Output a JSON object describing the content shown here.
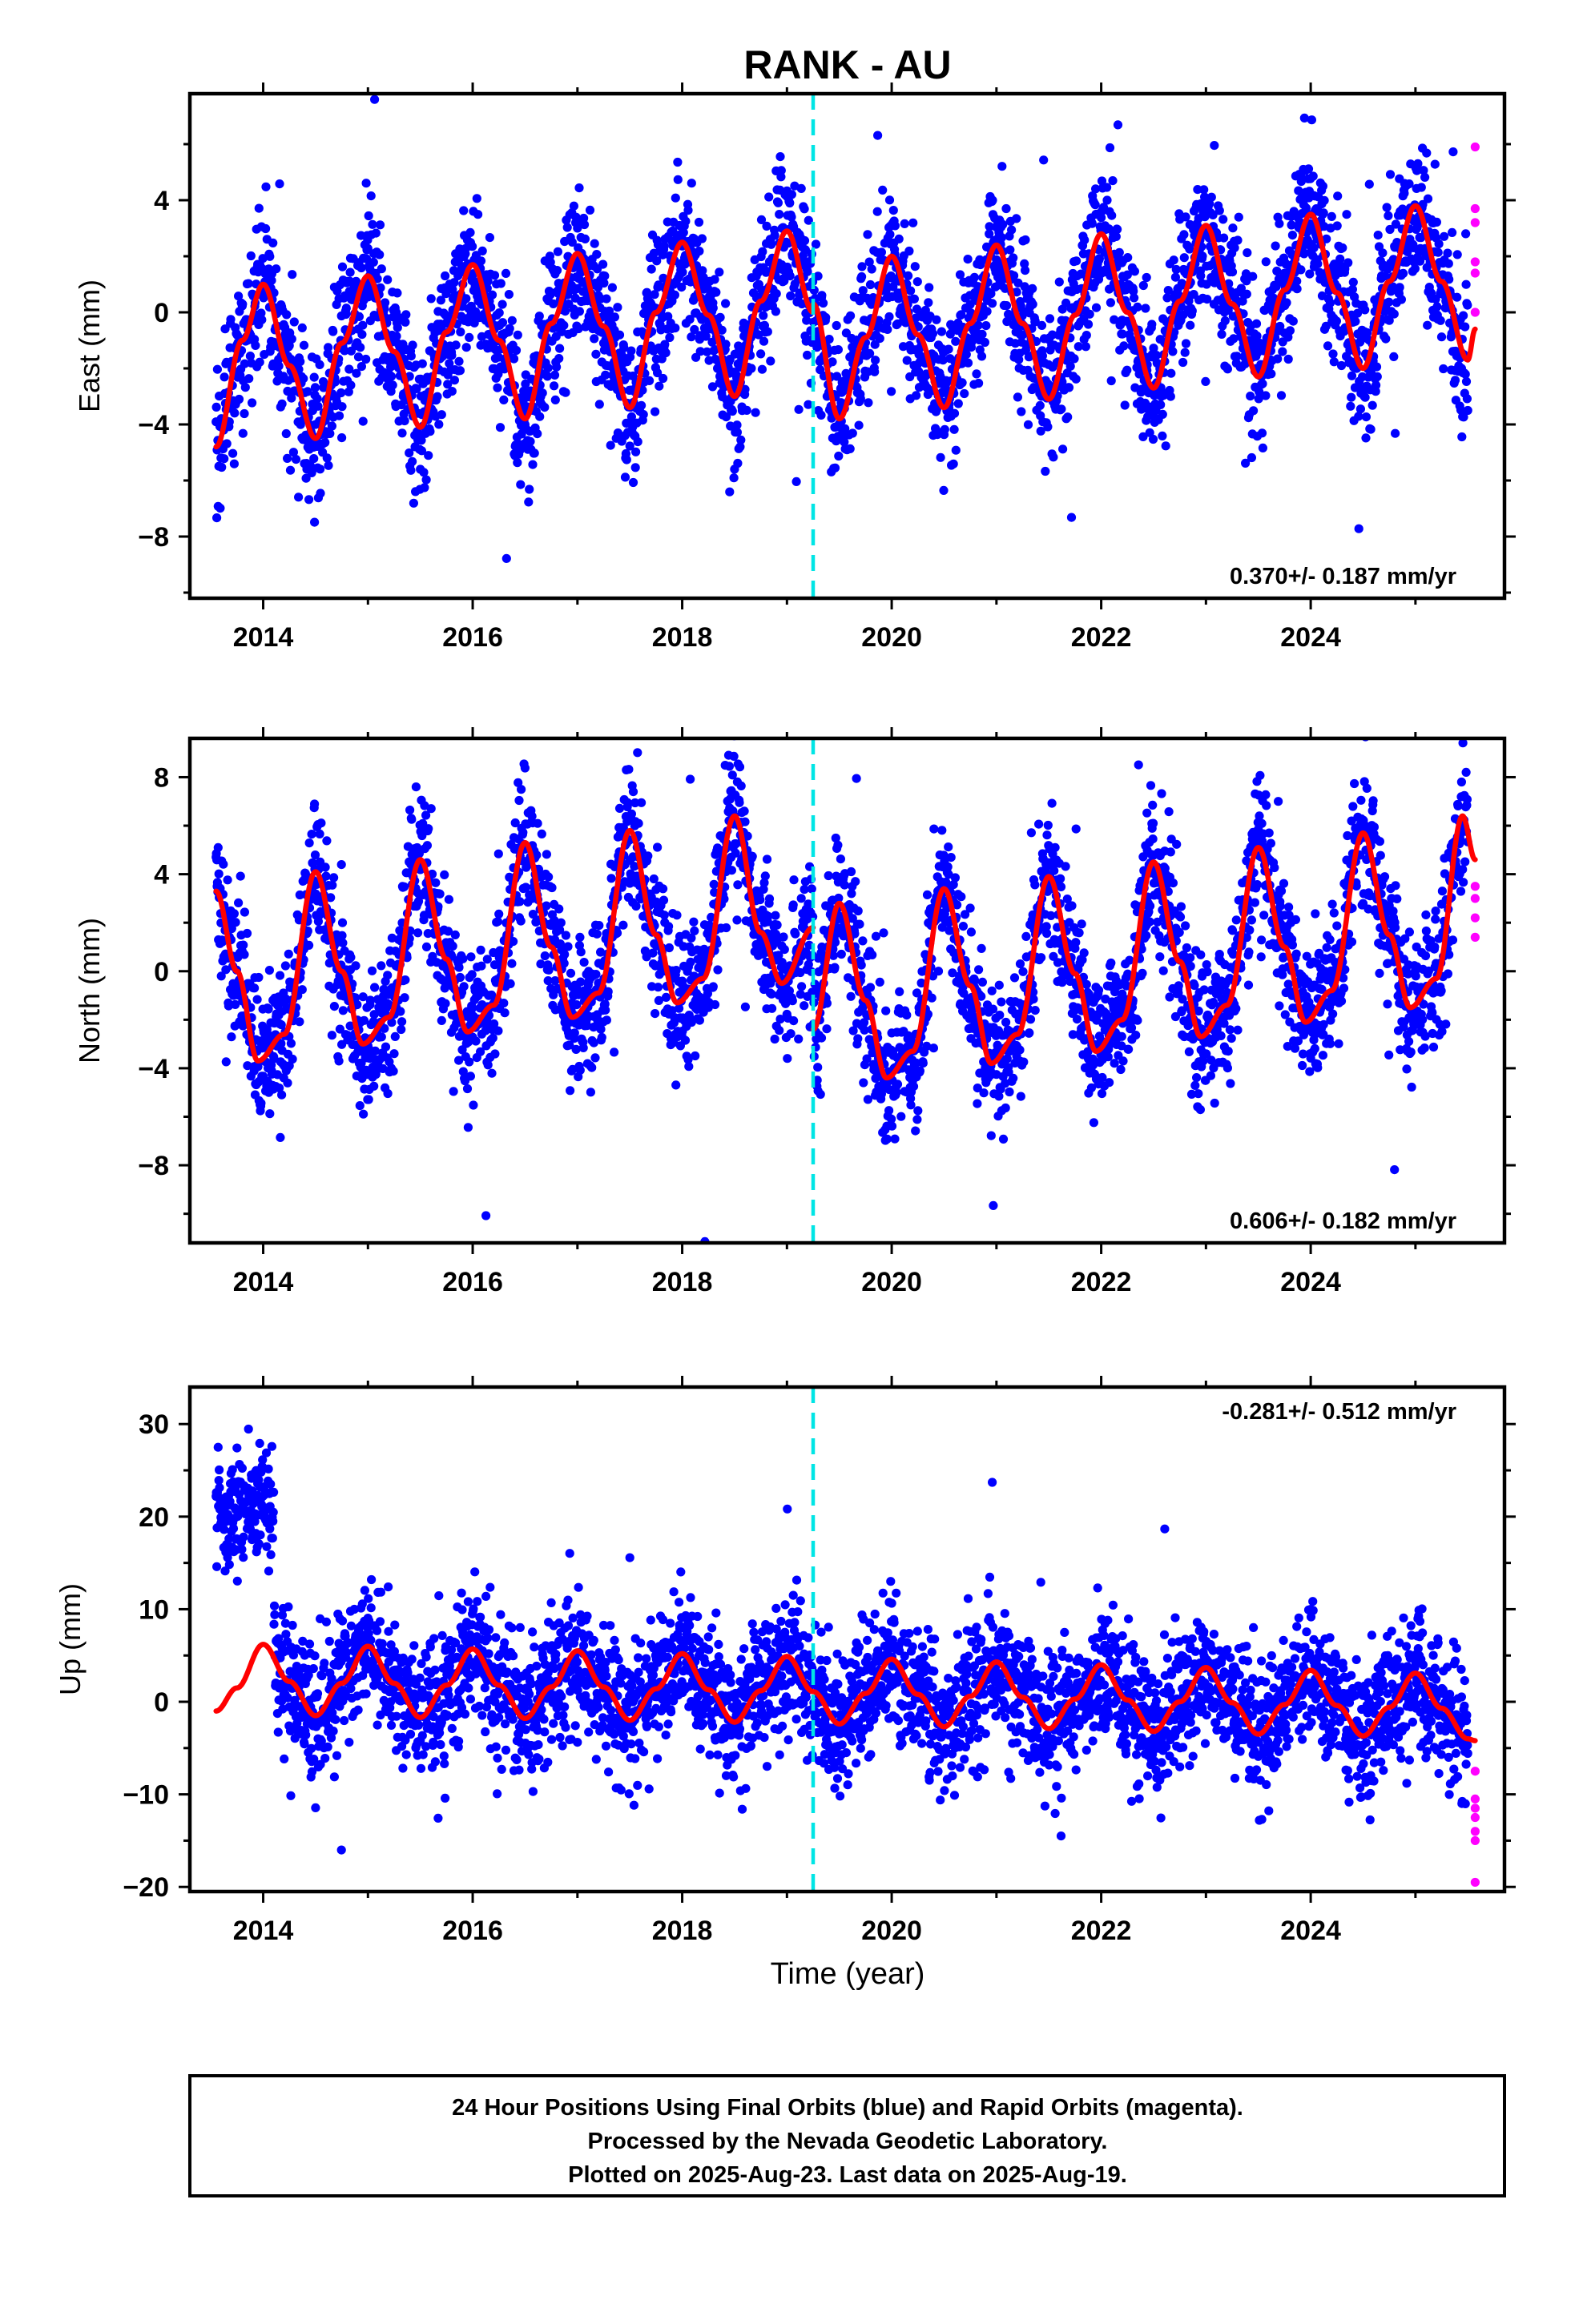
{
  "figure": {
    "title": "RANK - AU",
    "xlabel": "Time (year)",
    "legend_lines": [
      "24 Hour Positions Using Final Orbits (blue) and Rapid Orbits (magenta).",
      "Processed by the Nevada Geodetic Laboratory.",
      "Plotted on 2025-Aug-23. Last data on 2025-Aug-19."
    ],
    "colors": {
      "final_orbits": "#0000ff",
      "rapid_orbits": "#ff00ff",
      "model_fit": "#ff0000",
      "equipment_change": "#00e5e5",
      "frame": "#000000"
    }
  },
  "chart_data": [
    {
      "type": "scatter",
      "component": "East",
      "ylabel": "East (mm)",
      "xlim": [
        2013.3,
        2025.85
      ],
      "ylim": [
        -10.2,
        7.8
      ],
      "xticks": [
        2014,
        2016,
        2018,
        2020,
        2022,
        2024
      ],
      "xtick_labels": [
        "2014",
        "2016",
        "2018",
        "2020",
        "2022",
        "2024"
      ],
      "yticks": [
        -8,
        -4,
        0,
        4
      ],
      "ytick_labels": [
        "−8",
        "−4",
        "0",
        "4"
      ],
      "rate_label": "0.370+/- 0.187 mm/yr",
      "rate_position": "bottom-right",
      "vertical_line_x": 2019.25,
      "data_start": 2013.55,
      "data_end": 2025.5,
      "rapid_x": 2025.57,
      "rapid_y": [
        5.9,
        3.7,
        3.2,
        1.8,
        1.4,
        0.0
      ],
      "fit_segments": [
        {
          "x": [
            2013.55,
            2013.8,
            2014.0,
            2014.25,
            2014.5,
            2014.75,
            2015.0,
            2015.25,
            2015.5,
            2015.75,
            2016.0,
            2016.25,
            2016.5,
            2016.75,
            2017.0,
            2017.25,
            2017.5,
            2017.75,
            2018.0,
            2018.25,
            2018.5,
            2018.75,
            2019.0,
            2019.25
          ],
          "y": [
            -4.8,
            -1.0,
            1.0,
            -1.9,
            -4.5,
            -1.1,
            1.3,
            -1.4,
            -4.1,
            -0.7,
            1.7,
            -1.0,
            -3.8,
            -0.4,
            2.1,
            -0.5,
            -3.4,
            0.0,
            2.5,
            -0.1,
            -3.0,
            0.4,
            2.9,
            0.0
          ]
        },
        {
          "x": [
            2019.25,
            2019.5,
            2019.75,
            2020.0,
            2020.25,
            2020.5,
            2020.75,
            2021.0,
            2021.25,
            2021.5,
            2021.75,
            2022.0,
            2022.25,
            2022.5,
            2022.75,
            2023.0,
            2023.25,
            2023.5,
            2023.75,
            2024.0,
            2024.25,
            2024.5,
            2024.75,
            2025.0,
            2025.25,
            2025.5,
            2025.57
          ],
          "y": [
            0.3,
            -3.8,
            -0.9,
            2.0,
            -0.8,
            -3.4,
            -0.4,
            2.4,
            -0.4,
            -3.1,
            -0.1,
            2.8,
            0.0,
            -2.7,
            0.4,
            3.1,
            0.3,
            -2.3,
            0.8,
            3.5,
            0.7,
            -2.0,
            1.1,
            3.8,
            1.1,
            -1.7,
            -0.6
          ]
        }
      ],
      "scatter_model": {
        "scatter_mm": 1.3,
        "outlier_mm": 2.4,
        "points_per_year": 300
      }
    },
    {
      "type": "scatter",
      "component": "North",
      "ylabel": "North (mm)",
      "xlim": [
        2013.3,
        2025.85
      ],
      "ylim": [
        -11.2,
        9.6
      ],
      "xticks": [
        2014,
        2016,
        2018,
        2020,
        2022,
        2024
      ],
      "xtick_labels": [
        "2014",
        "2016",
        "2018",
        "2020",
        "2022",
        "2024"
      ],
      "yticks": [
        -8,
        -4,
        0,
        4,
        8
      ],
      "ytick_labels": [
        "−8",
        "−4",
        "0",
        "4",
        "8"
      ],
      "rate_label": "0.606+/- 0.182 mm/yr",
      "rate_position": "bottom-right",
      "vertical_line_x": 2019.25,
      "data_start": 2013.55,
      "data_end": 2025.5,
      "rapid_x": 2025.57,
      "rapid_y": [
        3.5,
        3.0,
        2.2,
        1.4
      ],
      "fit_segments": [
        {
          "x": [
            2013.55,
            2013.75,
            2013.95,
            2014.2,
            2014.5,
            2014.75,
            2014.95,
            2015.2,
            2015.5,
            2015.75,
            2015.95,
            2016.2,
            2016.5,
            2016.75,
            2016.95,
            2017.2,
            2017.5,
            2017.75,
            2017.95,
            2018.2,
            2018.5,
            2018.75,
            2018.95,
            2019.25
          ],
          "y": [
            3.3,
            0.0,
            -3.7,
            -2.6,
            4.1,
            0.0,
            -3.0,
            -1.9,
            4.6,
            0.5,
            -2.5,
            -1.4,
            5.3,
            1.0,
            -1.9,
            -0.9,
            5.8,
            1.5,
            -1.3,
            -0.3,
            6.4,
            1.6,
            -0.5,
            1.8
          ]
        },
        {
          "x": [
            2019.25,
            2019.5,
            2019.75,
            2019.95,
            2020.2,
            2020.5,
            2020.75,
            2020.95,
            2021.2,
            2021.5,
            2021.75,
            2021.95,
            2022.2,
            2022.5,
            2022.75,
            2022.95,
            2023.2,
            2023.5,
            2023.75,
            2023.95,
            2024.2,
            2024.5,
            2024.75,
            2024.95,
            2025.2,
            2025.45,
            2025.57
          ],
          "y": [
            -2.4,
            2.8,
            -1.2,
            -4.4,
            -3.3,
            3.4,
            -0.6,
            -3.8,
            -2.6,
            3.9,
            -0.1,
            -3.3,
            -2.0,
            4.5,
            0.4,
            -2.7,
            -1.4,
            5.1,
            1.0,
            -2.1,
            -0.8,
            5.7,
            1.5,
            -1.5,
            -0.3,
            6.4,
            4.6
          ]
        }
      ],
      "scatter_model": {
        "scatter_mm": 1.4,
        "outlier_mm": 2.6,
        "points_per_year": 300
      }
    },
    {
      "type": "scatter",
      "component": "Up",
      "ylabel": "Up (mm)",
      "xlim": [
        2013.3,
        2025.85
      ],
      "ylim": [
        -20.5,
        34.0
      ],
      "xticks": [
        2014,
        2016,
        2018,
        2020,
        2022,
        2024
      ],
      "xtick_labels": [
        "2014",
        "2016",
        "2018",
        "2020",
        "2022",
        "2024"
      ],
      "yticks": [
        -20,
        -10,
        0,
        10,
        20,
        30
      ],
      "ytick_labels": [
        "−20",
        "−10",
        "0",
        "10",
        "20",
        "30"
      ],
      "rate_label": "-0.281+/- 0.512 mm/yr",
      "rate_position": "top-right",
      "vertical_line_x": 2019.25,
      "data_start": 2013.55,
      "data_end": 2025.5,
      "rapid_x": 2025.57,
      "rapid_y": [
        -7.5,
        -10.5,
        -11.5,
        -12.5,
        -14.0,
        -15.0,
        -19.5
      ],
      "early_offset_segment": {
        "start": 2013.55,
        "end": 2014.1,
        "mean": 20.5
      },
      "fit_segments": [
        {
          "x": [
            2013.55,
            2013.75,
            2014.0,
            2014.25,
            2014.5,
            2014.75,
            2015.0,
            2015.25,
            2015.5,
            2015.75,
            2016.0,
            2016.25,
            2016.5,
            2016.75,
            2017.0,
            2017.25,
            2017.5,
            2017.75,
            2018.0,
            2018.25,
            2018.5,
            2018.75,
            2019.0,
            2019.25,
            2019.5,
            2019.75,
            2020.0,
            2020.25,
            2020.5,
            2020.75,
            2021.0,
            2021.25,
            2021.5,
            2021.75,
            2022.0,
            2022.25,
            2022.5,
            2022.75,
            2023.0,
            2023.25,
            2023.5,
            2023.75,
            2024.0,
            2024.25,
            2024.5,
            2024.75,
            2025.0,
            2025.25,
            2025.5,
            2025.57
          ],
          "y": [
            -1.0,
            1.5,
            6.2,
            2.2,
            -1.5,
            2.0,
            6.0,
            2.0,
            -1.7,
            1.8,
            5.7,
            1.8,
            -1.8,
            1.6,
            5.5,
            1.6,
            -2.0,
            1.4,
            5.2,
            1.3,
            -2.2,
            1.2,
            4.9,
            1.1,
            -2.4,
            0.9,
            4.6,
            0.8,
            -2.7,
            0.6,
            4.3,
            0.5,
            -2.9,
            0.3,
            4.0,
            0.2,
            -3.2,
            0.0,
            3.7,
            -0.1,
            -3.5,
            -0.3,
            3.4,
            -0.4,
            -3.7,
            -0.6,
            3.1,
            -0.7,
            -4.0,
            -4.2
          ]
        }
      ],
      "scatter_model": {
        "scatter_mm": 3.6,
        "outlier_mm": 6.5,
        "points_per_year": 300
      }
    }
  ]
}
